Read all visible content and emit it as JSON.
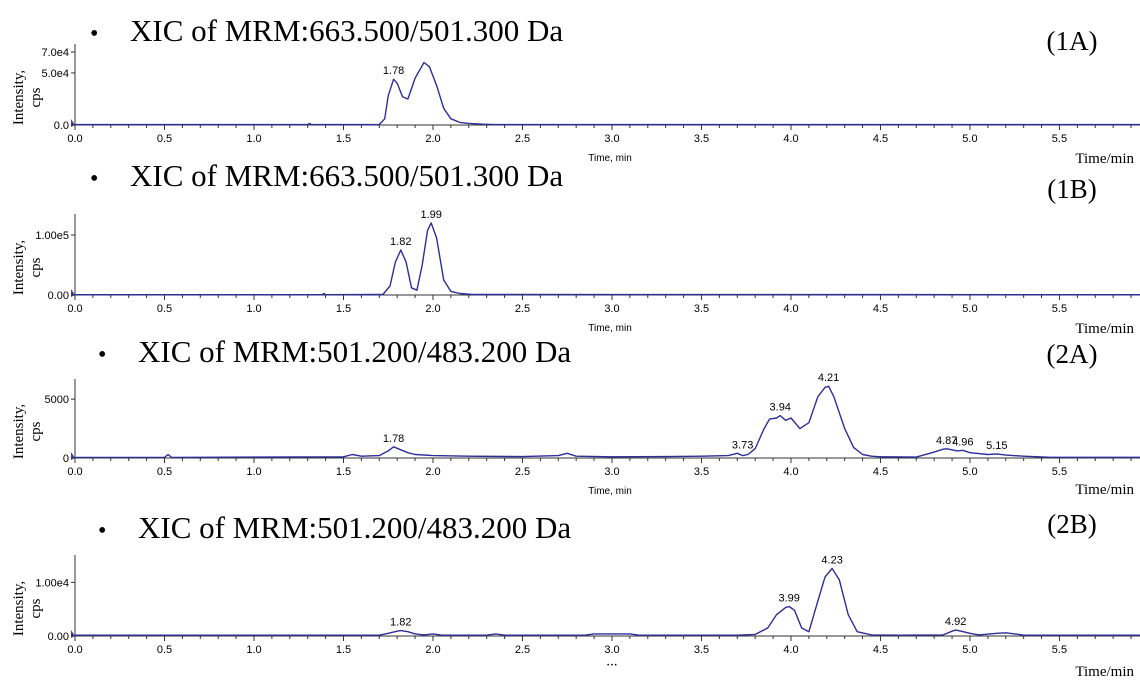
{
  "chart_data": [
    {
      "type": "line",
      "panel_label": "(1A)",
      "heading": "XIC of MRM:663.500/501.300 Da",
      "bullet": "•",
      "ylabel": "Intensity,",
      "yunit": "cps",
      "xlabel": "Time, min",
      "xlabel_right": "Time/min",
      "xlim": [
        0,
        5.95
      ],
      "ylim": [
        0,
        72000
      ],
      "yticks": [
        {
          "value": 0,
          "label": "0.0"
        },
        {
          "value": 50000,
          "label": "5.0e4"
        },
        {
          "value": 70000,
          "label": "7.0e4"
        }
      ],
      "xticks": [
        "0.0",
        "0.5",
        "1.0",
        "1.5",
        "2.0",
        "2.5",
        "3.0",
        "3.5",
        "4.0",
        "4.5",
        "5.0",
        "5.5"
      ],
      "series": [
        {
          "color": "#2e2e9a",
          "x": [
            0,
            1.3,
            1.31,
            1.32,
            1.7,
            1.73,
            1.75,
            1.78,
            1.8,
            1.83,
            1.86,
            1.9,
            1.95,
            1.98,
            2.02,
            2.06,
            2.1,
            2.15,
            2.2,
            2.28,
            2.35,
            5.95
          ],
          "y": [
            400,
            400,
            1500,
            400,
            500,
            6000,
            28000,
            44000,
            40000,
            27000,
            25000,
            45000,
            60000,
            56000,
            38000,
            16000,
            6000,
            2500,
            1500,
            800,
            400,
            400
          ]
        }
      ],
      "annotations": [
        {
          "x": 1.78,
          "y": 44000,
          "text": "1.78"
        }
      ]
    },
    {
      "type": "line",
      "panel_label": "(1B)",
      "heading": "XIC of MRM:663.500/501.300 Da",
      "bullet": "•",
      "ylabel": "Intensity,",
      "yunit": "cps",
      "xlabel": "Time, min",
      "xlabel_right": "Time/min",
      "xlim": [
        0,
        5.95
      ],
      "ylim": [
        0,
        125000
      ],
      "yticks": [
        {
          "value": 0,
          "label": "0.00"
        },
        {
          "value": 100000,
          "label": "1.00e5"
        }
      ],
      "xticks": [
        "0.0",
        "0.5",
        "1.0",
        "1.5",
        "2.0",
        "2.5",
        "3.0",
        "3.5",
        "4.0",
        "4.5",
        "5.0",
        "5.5"
      ],
      "series": [
        {
          "color": "#2e2e9a",
          "x": [
            0,
            1.38,
            1.39,
            1.4,
            1.72,
            1.76,
            1.79,
            1.82,
            1.85,
            1.88,
            1.91,
            1.94,
            1.97,
            1.99,
            2.02,
            2.06,
            2.1,
            2.15,
            2.22,
            5.95
          ],
          "y": [
            500,
            500,
            2500,
            500,
            800,
            15000,
            55000,
            75000,
            55000,
            12000,
            8000,
            50000,
            108000,
            120000,
            95000,
            25000,
            6000,
            2500,
            800,
            500
          ]
        }
      ],
      "annotations": [
        {
          "x": 1.82,
          "y": 75000,
          "text": "1.82"
        },
        {
          "x": 1.99,
          "y": 120000,
          "text": "1.99"
        }
      ]
    },
    {
      "type": "line",
      "panel_label": "(2A)",
      "heading": "XIC of MRM:501.200/483.200 Da",
      "bullet": "•",
      "ylabel": "Intensity,",
      "yunit": "cps",
      "xlabel": "Time, min",
      "xlabel_right": "Time/min",
      "xlim": [
        0,
        5.95
      ],
      "ylim": [
        0,
        6200
      ],
      "yticks": [
        {
          "value": 0,
          "label": "0"
        },
        {
          "value": 5000,
          "label": "5000"
        }
      ],
      "xticks": [
        "0.0",
        "0.5",
        "1.0",
        "1.5",
        "2.0",
        "2.5",
        "3.0",
        "3.5",
        "4.0",
        "4.5",
        "5.0",
        "5.5"
      ],
      "series": [
        {
          "color": "#2e2e9a",
          "x": [
            0,
            0.5,
            0.52,
            0.54,
            1.5,
            1.55,
            1.6,
            1.7,
            1.75,
            1.78,
            1.82,
            1.86,
            1.9,
            2.0,
            2.2,
            2.5,
            2.7,
            2.75,
            2.8,
            3.0,
            3.3,
            3.5,
            3.65,
            3.7,
            3.73,
            3.76,
            3.8,
            3.85,
            3.88,
            3.92,
            3.94,
            3.97,
            4.0,
            4.05,
            4.1,
            4.15,
            4.19,
            4.21,
            4.24,
            4.3,
            4.35,
            4.4,
            4.45,
            4.5,
            4.7,
            4.8,
            4.85,
            4.87,
            4.9,
            4.93,
            4.96,
            5.0,
            5.1,
            5.15,
            5.2,
            5.3,
            5.45,
            5.95
          ],
          "y": [
            50,
            50,
            300,
            50,
            100,
            300,
            150,
            200,
            600,
            950,
            700,
            450,
            300,
            200,
            150,
            120,
            200,
            400,
            150,
            100,
            120,
            150,
            200,
            400,
            200,
            300,
            800,
            2500,
            3300,
            3400,
            3600,
            3200,
            3400,
            2500,
            3000,
            5200,
            6000,
            6100,
            5200,
            2500,
            900,
            300,
            150,
            100,
            80,
            500,
            750,
            780,
            700,
            600,
            650,
            450,
            300,
            350,
            250,
            150,
            60,
            60
          ]
        }
      ],
      "annotations": [
        {
          "x": 1.78,
          "y": 950,
          "text": "1.78"
        },
        {
          "x": 3.73,
          "y": 400,
          "text": "3.73"
        },
        {
          "x": 3.94,
          "y": 3600,
          "text": "3.94"
        },
        {
          "x": 4.21,
          "y": 6100,
          "text": "4.21"
        },
        {
          "x": 4.87,
          "y": 780,
          "text": "4.87"
        },
        {
          "x": 4.96,
          "y": 650,
          "text": "4.96"
        },
        {
          "x": 5.15,
          "y": 350,
          "text": "5.15"
        }
      ]
    },
    {
      "type": "line",
      "panel_label": "(2B)",
      "heading": "XIC of MRM:501.200/483.200 Da",
      "bullet": "•",
      "ylabel": "Intensity,",
      "yunit": "cps",
      "xlabel": "",
      "xlabel_right": "Time/min",
      "xlim": [
        0,
        5.95
      ],
      "ylim": [
        0,
        14000
      ],
      "yticks": [
        {
          "value": 0,
          "label": "0.00"
        },
        {
          "value": 10000,
          "label": "1.00e4"
        }
      ],
      "xticks": [
        "0.0",
        "0.5",
        "1.0",
        "1.5",
        "2.0",
        "2.5",
        "3.0",
        "3.5",
        "4.0",
        "4.5",
        "5.0",
        "5.5"
      ],
      "series": [
        {
          "color": "#2e2e9a",
          "x": [
            0,
            1.7,
            1.75,
            1.8,
            1.82,
            1.86,
            1.9,
            1.95,
            2.0,
            2.05,
            2.3,
            2.35,
            2.4,
            2.85,
            2.9,
            3.1,
            3.15,
            3.7,
            3.8,
            3.87,
            3.92,
            3.97,
            3.99,
            4.02,
            4.06,
            4.1,
            4.15,
            4.19,
            4.23,
            4.27,
            4.32,
            4.37,
            4.45,
            4.6,
            4.85,
            4.9,
            4.92,
            4.95,
            5.0,
            5.05,
            5.15,
            5.2,
            5.25,
            5.3,
            5.95
          ],
          "y": [
            150,
            150,
            500,
            900,
            1000,
            800,
            400,
            200,
            400,
            150,
            150,
            400,
            150,
            150,
            400,
            400,
            150,
            150,
            300,
            1500,
            4000,
            5300,
            5500,
            4800,
            1500,
            800,
            6500,
            11000,
            12600,
            10500,
            4000,
            800,
            200,
            150,
            200,
            900,
            1100,
            900,
            500,
            200,
            500,
            600,
            400,
            150,
            150
          ]
        }
      ],
      "annotations": [
        {
          "x": 1.82,
          "y": 1000,
          "text": "1.82"
        },
        {
          "x": 3.99,
          "y": 5500,
          "text": "3.99"
        },
        {
          "x": 4.23,
          "y": 12600,
          "text": "4.23"
        },
        {
          "x": 4.92,
          "y": 1100,
          "text": "4.92"
        }
      ]
    }
  ],
  "stray_tick_label": "• • •"
}
